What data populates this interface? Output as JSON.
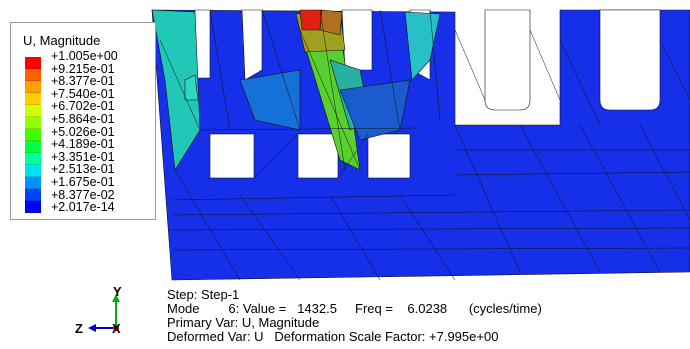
{
  "legend": {
    "title": "U, Magnitude",
    "labels": [
      "+1.005e+00",
      "+9.215e-01",
      "+8.377e-01",
      "+7.540e-01",
      "+6.702e-01",
      "+5.864e-01",
      "+5.026e-01",
      "+4.189e-01",
      "+3.351e-01",
      "+2.513e-01",
      "+1.675e-01",
      "+8.377e-02",
      "+2.017e-14"
    ],
    "colors": [
      "#ff0000",
      "#ff6000",
      "#ffa000",
      "#ffd000",
      "#d0ff00",
      "#90ff00",
      "#40ff00",
      "#00ff40",
      "#00ffa0",
      "#00e0f0",
      "#0090ff",
      "#0040ff",
      "#0000ff"
    ]
  },
  "info": {
    "line1": "Step: Step-1",
    "line2": "Mode        6: Value =   1432.5     Freq =    6.0238      (cycles/time)",
    "line3": "Primary Var: U, Magnitude",
    "line4": "Deformed Var: U   Deformation Scale Factor: +7.995e+00"
  },
  "triad": {
    "y_label": "Y",
    "z_label": "Z",
    "x_label": "X"
  }
}
